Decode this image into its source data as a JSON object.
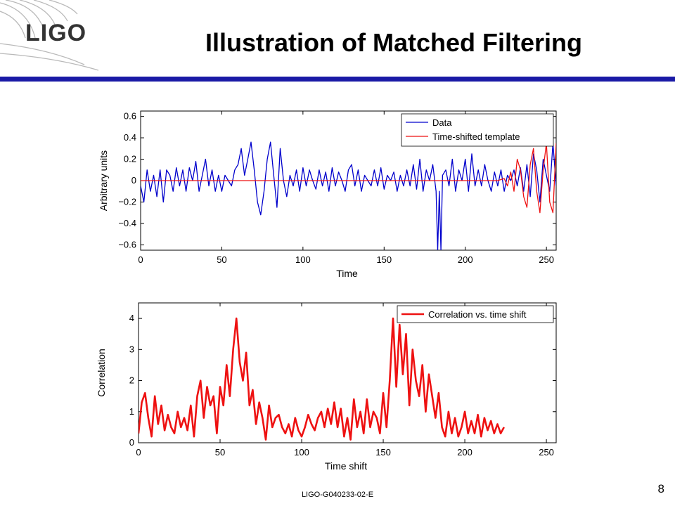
{
  "header": {
    "logo_text": "LIGO",
    "title": "Illustration of Matched Filtering"
  },
  "footer": {
    "doc_id": "LIGO-G040233-02-E",
    "page_number": "8"
  },
  "colors": {
    "rule": "#1a1aa6",
    "data_series": "#0000cc",
    "template_series": "#ee1111",
    "correlation_series": "#ee1111"
  },
  "chart_data": [
    {
      "type": "line",
      "title": "",
      "xlabel": "Time",
      "ylabel": "Arbitrary units",
      "xlim": [
        0,
        256
      ],
      "ylim": [
        -0.65,
        0.65
      ],
      "xticks": [
        0,
        50,
        100,
        150,
        200,
        250
      ],
      "yticks": [
        -0.6,
        -0.4,
        -0.2,
        0,
        0.2,
        0.4,
        0.6
      ],
      "ytick_labels": [
        "−0.6",
        "−0.4",
        "−0.2",
        "0",
        "0.2",
        "0.4",
        "0.6"
      ],
      "grid": false,
      "legend": "top-right",
      "series": [
        {
          "name": "Data",
          "color": "#0000cc",
          "x": [
            0,
            2,
            4,
            6,
            8,
            10,
            12,
            14,
            16,
            18,
            20,
            22,
            24,
            26,
            28,
            30,
            32,
            34,
            36,
            38,
            40,
            42,
            44,
            46,
            48,
            50,
            52,
            54,
            56,
            58,
            60,
            62,
            64,
            66,
            68,
            70,
            72,
            74,
            76,
            78,
            80,
            82,
            84,
            86,
            88,
            90,
            92,
            94,
            96,
            98,
            100,
            102,
            104,
            106,
            108,
            110,
            112,
            114,
            116,
            118,
            120,
            122,
            124,
            126,
            128,
            130,
            132,
            134,
            136,
            138,
            140,
            142,
            144,
            146,
            148,
            150,
            152,
            154,
            156,
            158,
            160,
            162,
            164,
            166,
            168,
            170,
            172,
            174,
            176,
            178,
            180,
            182,
            183,
            184,
            185,
            186,
            188,
            190,
            192,
            194,
            196,
            198,
            200,
            202,
            204,
            206,
            208,
            210,
            212,
            214,
            216,
            218,
            220,
            222,
            224,
            226,
            228,
            230,
            232,
            234,
            236,
            238,
            240,
            242,
            244,
            246,
            248,
            250,
            252,
            254,
            256
          ],
          "y": [
            -0.05,
            -0.2,
            0.1,
            -0.1,
            0.05,
            -0.15,
            0.1,
            -0.2,
            0.1,
            0.05,
            -0.1,
            0.12,
            -0.05,
            0.1,
            -0.1,
            0.12,
            0.0,
            0.18,
            -0.1,
            0.05,
            0.2,
            -0.05,
            0.1,
            -0.1,
            0.05,
            -0.1,
            0.05,
            0.0,
            -0.05,
            0.1,
            0.15,
            0.3,
            0.05,
            0.2,
            0.36,
            0.1,
            -0.2,
            -0.32,
            -0.1,
            0.2,
            0.36,
            0.05,
            -0.25,
            0.3,
            0.0,
            -0.15,
            0.05,
            -0.05,
            0.1,
            -0.1,
            0.12,
            -0.05,
            0.1,
            0.0,
            -0.08,
            0.1,
            -0.05,
            0.08,
            -0.1,
            0.12,
            -0.05,
            0.08,
            0.0,
            -0.1,
            0.1,
            0.15,
            -0.05,
            0.1,
            -0.1,
            0.05,
            0.0,
            -0.05,
            0.1,
            -0.05,
            0.12,
            -0.08,
            0.05,
            0.0,
            0.08,
            -0.1,
            0.05,
            -0.05,
            0.1,
            -0.05,
            0.15,
            -0.08,
            0.2,
            -0.1,
            0.1,
            0.0,
            0.15,
            -0.1,
            -0.65,
            -0.1,
            -0.65,
            0.05,
            0.1,
            -0.05,
            0.2,
            -0.1,
            0.1,
            0.0,
            0.2,
            -0.1,
            0.25,
            -0.05,
            0.1,
            -0.05,
            0.15,
            0.0,
            -0.1,
            0.08,
            -0.05,
            0.1,
            -0.1,
            0.05,
            0.0,
            0.1,
            -0.05,
            0.12,
            -0.1,
            0.15,
            -0.15,
            0.25,
            0.1,
            -0.2,
            0.2,
            0.05,
            -0.1,
            0.35,
            -0.05
          ]
        },
        {
          "name": "Time-shifted template",
          "color": "#ee1111",
          "x": [
            0,
            220,
            224,
            226,
            228,
            230,
            232,
            234,
            236,
            238,
            240,
            242,
            244,
            246,
            248,
            250,
            252,
            254,
            256
          ],
          "y": [
            0,
            0,
            0.02,
            -0.05,
            0.08,
            -0.1,
            0.2,
            0.1,
            -0.15,
            -0.25,
            0.15,
            0.3,
            -0.1,
            -0.3,
            0.1,
            0.35,
            -0.2,
            -0.3,
            0.35
          ]
        }
      ]
    },
    {
      "type": "line",
      "title": "",
      "xlabel": "Time shift",
      "ylabel": "Correlation",
      "xlim": [
        0,
        256
      ],
      "ylim": [
        0,
        4.5
      ],
      "xticks": [
        0,
        50,
        100,
        150,
        200,
        250
      ],
      "yticks": [
        0,
        1,
        2,
        3,
        4
      ],
      "grid": false,
      "legend": "top-right",
      "series": [
        {
          "name": "Correlation vs. time shift",
          "color": "#ee1111",
          "x": [
            0,
            2,
            4,
            6,
            8,
            10,
            12,
            14,
            16,
            18,
            20,
            22,
            24,
            26,
            28,
            30,
            32,
            34,
            36,
            38,
            40,
            42,
            44,
            46,
            48,
            50,
            52,
            54,
            56,
            58,
            60,
            62,
            64,
            66,
            68,
            70,
            72,
            74,
            76,
            78,
            80,
            82,
            84,
            86,
            88,
            90,
            92,
            94,
            96,
            98,
            100,
            102,
            104,
            106,
            108,
            110,
            112,
            114,
            116,
            118,
            120,
            122,
            124,
            126,
            128,
            130,
            132,
            134,
            136,
            138,
            140,
            142,
            144,
            146,
            148,
            150,
            152,
            154,
            156,
            158,
            160,
            162,
            164,
            166,
            168,
            170,
            172,
            174,
            176,
            178,
            180,
            182,
            184,
            186,
            188,
            190,
            192,
            194,
            196,
            198,
            200,
            202,
            204,
            206,
            208,
            210,
            212,
            214,
            216,
            218,
            220,
            222,
            224
          ],
          "y": [
            0.3,
            1.3,
            1.6,
            0.8,
            0.2,
            1.5,
            0.6,
            1.2,
            0.4,
            0.9,
            0.5,
            0.3,
            1.0,
            0.5,
            0.8,
            0.4,
            1.2,
            0.2,
            1.5,
            2.0,
            0.8,
            1.8,
            1.2,
            1.5,
            0.3,
            1.8,
            1.2,
            2.5,
            1.5,
            3.0,
            4.0,
            2.6,
            2.0,
            2.9,
            1.2,
            1.7,
            0.6,
            1.3,
            0.8,
            0.1,
            1.2,
            0.5,
            0.8,
            0.9,
            0.5,
            0.3,
            0.6,
            0.2,
            0.8,
            0.4,
            0.2,
            0.5,
            0.9,
            0.6,
            0.4,
            0.8,
            1.0,
            0.5,
            1.1,
            0.6,
            1.3,
            0.5,
            1.1,
            0.2,
            0.8,
            0.1,
            1.4,
            0.5,
            1.0,
            0.3,
            1.4,
            0.5,
            1.0,
            0.8,
            0.3,
            1.6,
            0.5,
            2.0,
            4.0,
            1.8,
            3.8,
            2.2,
            3.5,
            1.2,
            3.0,
            2.0,
            1.5,
            2.5,
            1.0,
            2.2,
            1.5,
            0.8,
            1.6,
            0.5,
            0.2,
            1.0,
            0.3,
            0.8,
            0.2,
            0.5,
            1.0,
            0.3,
            0.7,
            0.3,
            0.9,
            0.2,
            0.8,
            0.4,
            0.7,
            0.3,
            0.6,
            0.3,
            0.5
          ]
        }
      ]
    }
  ]
}
